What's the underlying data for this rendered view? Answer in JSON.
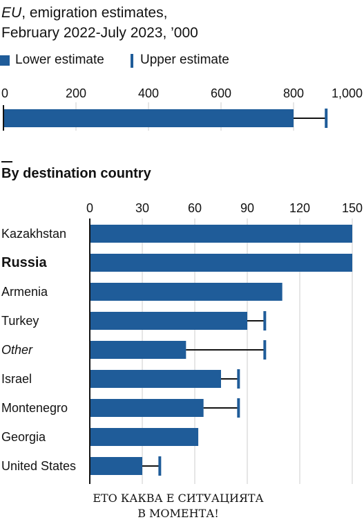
{
  "header": {
    "title_italic": "EU",
    "title_line1_rest": ", emigration estimates,",
    "title_line2": "February 2022-July 2023, ’000"
  },
  "legend": {
    "lower": "Lower estimate",
    "upper": "Upper estimate"
  },
  "section_title": "By destination country",
  "caption": "ЕТО КАКВА Е СИТУАЦИЯТА\nВ МОМЕНТА!",
  "colors": {
    "bar": "#1f5c99",
    "text": "#121212",
    "grid": "#cccccc",
    "error": "#121212"
  },
  "chart_data": [
    {
      "type": "bar",
      "orientation": "horizontal",
      "categories": [
        "EU"
      ],
      "series": [
        {
          "name": "Lower estimate",
          "values": [
            800
          ]
        },
        {
          "name": "Upper estimate",
          "values": [
            890
          ]
        }
      ],
      "xlim": [
        0,
        1000
      ],
      "xticks": [
        "0",
        "200",
        "400",
        "600",
        "800",
        "1,000"
      ],
      "grid": true
    },
    {
      "type": "bar",
      "orientation": "horizontal",
      "title": "By destination country",
      "categories": [
        "Kazakhstan",
        "Russia",
        "Armenia",
        "Turkey",
        "Other",
        "Israel",
        "Montenegro",
        "Georgia",
        "United States"
      ],
      "category_style": [
        "normal",
        "bold",
        "normal",
        "normal",
        "italic",
        "normal",
        "normal",
        "normal",
        "normal"
      ],
      "series": [
        {
          "name": "Lower estimate",
          "values": [
            150,
            150,
            110,
            90,
            55,
            75,
            65,
            62,
            30
          ]
        },
        {
          "name": "Upper estimate",
          "values": [
            null,
            null,
            null,
            100,
            100,
            85,
            85,
            null,
            40
          ]
        }
      ],
      "xlim": [
        0,
        150
      ],
      "xticks": [
        "0",
        "30",
        "60",
        "90",
        "120",
        "150"
      ],
      "grid": true
    }
  ]
}
